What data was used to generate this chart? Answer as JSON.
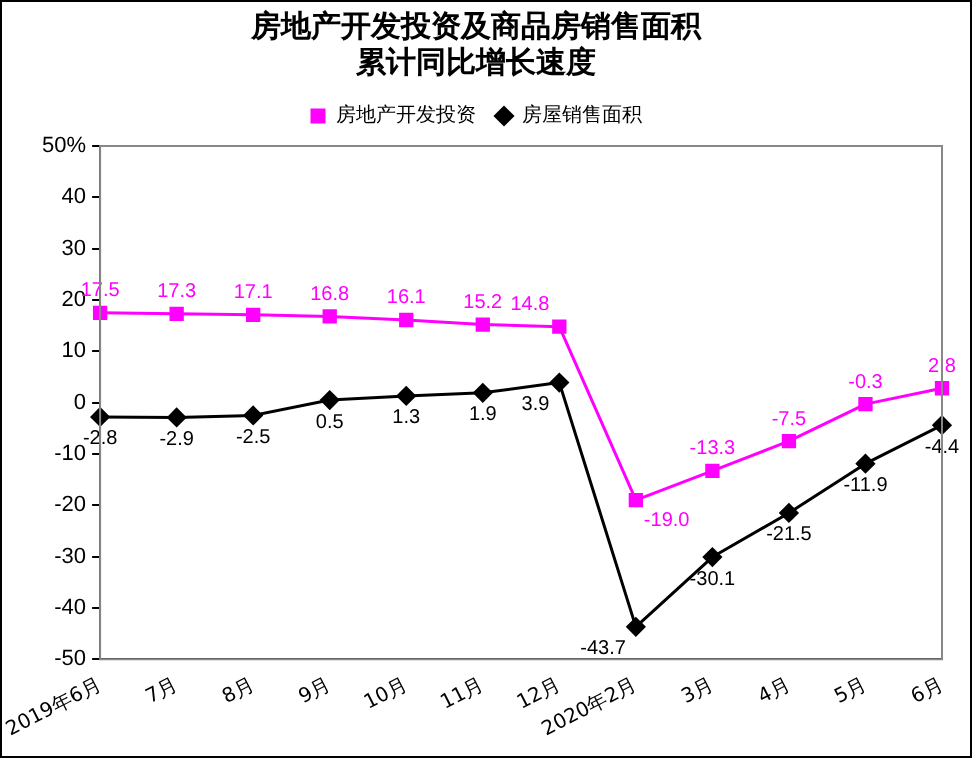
{
  "chart_data": {
    "type": "line",
    "title": "房地产开发投资及商品房销售面积累计同比增长速度",
    "categories": [
      "2019年6月",
      "7月",
      "8月",
      "9月",
      "10月",
      "11月",
      "12月",
      "2020年2月",
      "3月",
      "4月",
      "5月",
      "6月"
    ],
    "series": [
      {
        "name": "房地产开发投资",
        "color": "#ff00ff",
        "marker": "square",
        "values": [
          17.5,
          17.3,
          17.1,
          16.8,
          16.1,
          15.2,
          14.8,
          -19.0,
          -13.3,
          -7.5,
          -0.3,
          2.8
        ],
        "value_labels": [
          "17.5",
          "17.3",
          "17.1",
          "16.8",
          "16.1",
          "15.2",
          "14.8",
          "-19.0",
          "-13.3",
          "-7.5",
          "-0.3",
          "2.8"
        ]
      },
      {
        "name": "房屋销售面积",
        "color": "#000000",
        "marker": "diamond",
        "values": [
          -2.8,
          -2.9,
          -2.5,
          0.5,
          1.3,
          1.9,
          3.9,
          -43.7,
          -30.1,
          -21.5,
          -11.9,
          -4.4
        ],
        "value_labels": [
          "-2.8",
          "-2.9",
          "-2.5",
          "0.5",
          "1.3",
          "1.9",
          "3.9",
          "-43.7",
          "-30.1",
          "-21.5",
          "-11.9",
          "-4.4"
        ]
      }
    ],
    "ylim": [
      -50,
      50
    ],
    "yticks": [
      -50,
      -40,
      -30,
      -20,
      -10,
      0,
      10,
      20,
      30,
      40,
      {
        "value": 50,
        "label": "50%"
      }
    ],
    "grid": false,
    "legend": "top",
    "line_style": "solid"
  }
}
